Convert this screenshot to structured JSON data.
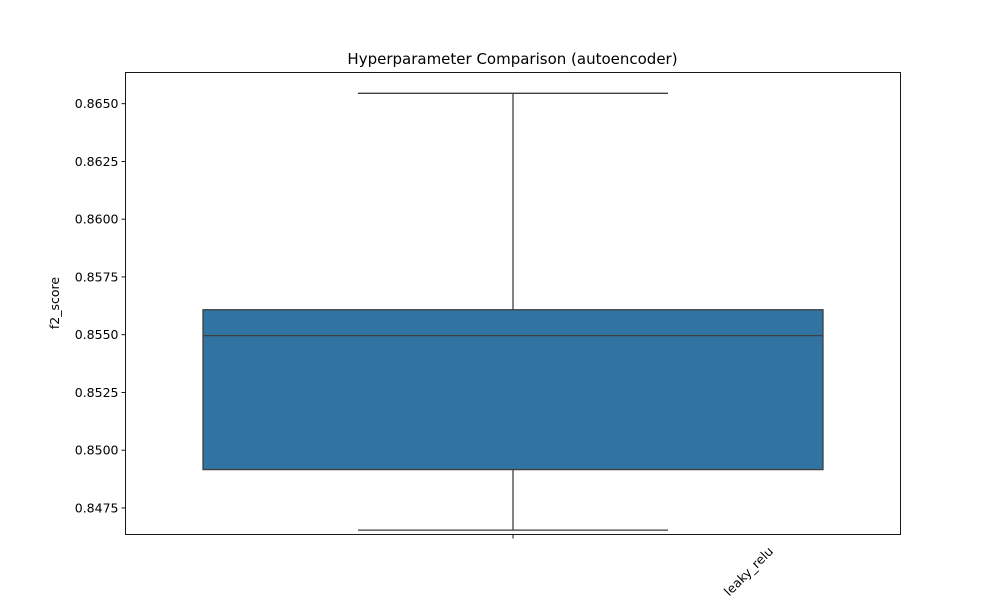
{
  "chart_data": {
    "type": "box",
    "title": "Hyperparameter Comparison (autoencoder)",
    "xlabel": "",
    "ylabel": "f2_score",
    "ylim": [
      0.84635,
      0.86635
    ],
    "yticks": [
      "0.8475",
      "0.8500",
      "0.8525",
      "0.8550",
      "0.8575",
      "0.8600",
      "0.8625",
      "0.8650"
    ],
    "categories": [
      "leaky_relu"
    ],
    "boxes": [
      {
        "category": "leaky_relu",
        "whisker_low": 0.84654,
        "q1": 0.84916,
        "median": 0.85496,
        "q3": 0.85608,
        "whisker_high": 0.86545
      }
    ],
    "grid": false,
    "colors": {
      "box_fill": "#3274a1",
      "line": "#3f3f3f",
      "frame": "#000000"
    }
  }
}
